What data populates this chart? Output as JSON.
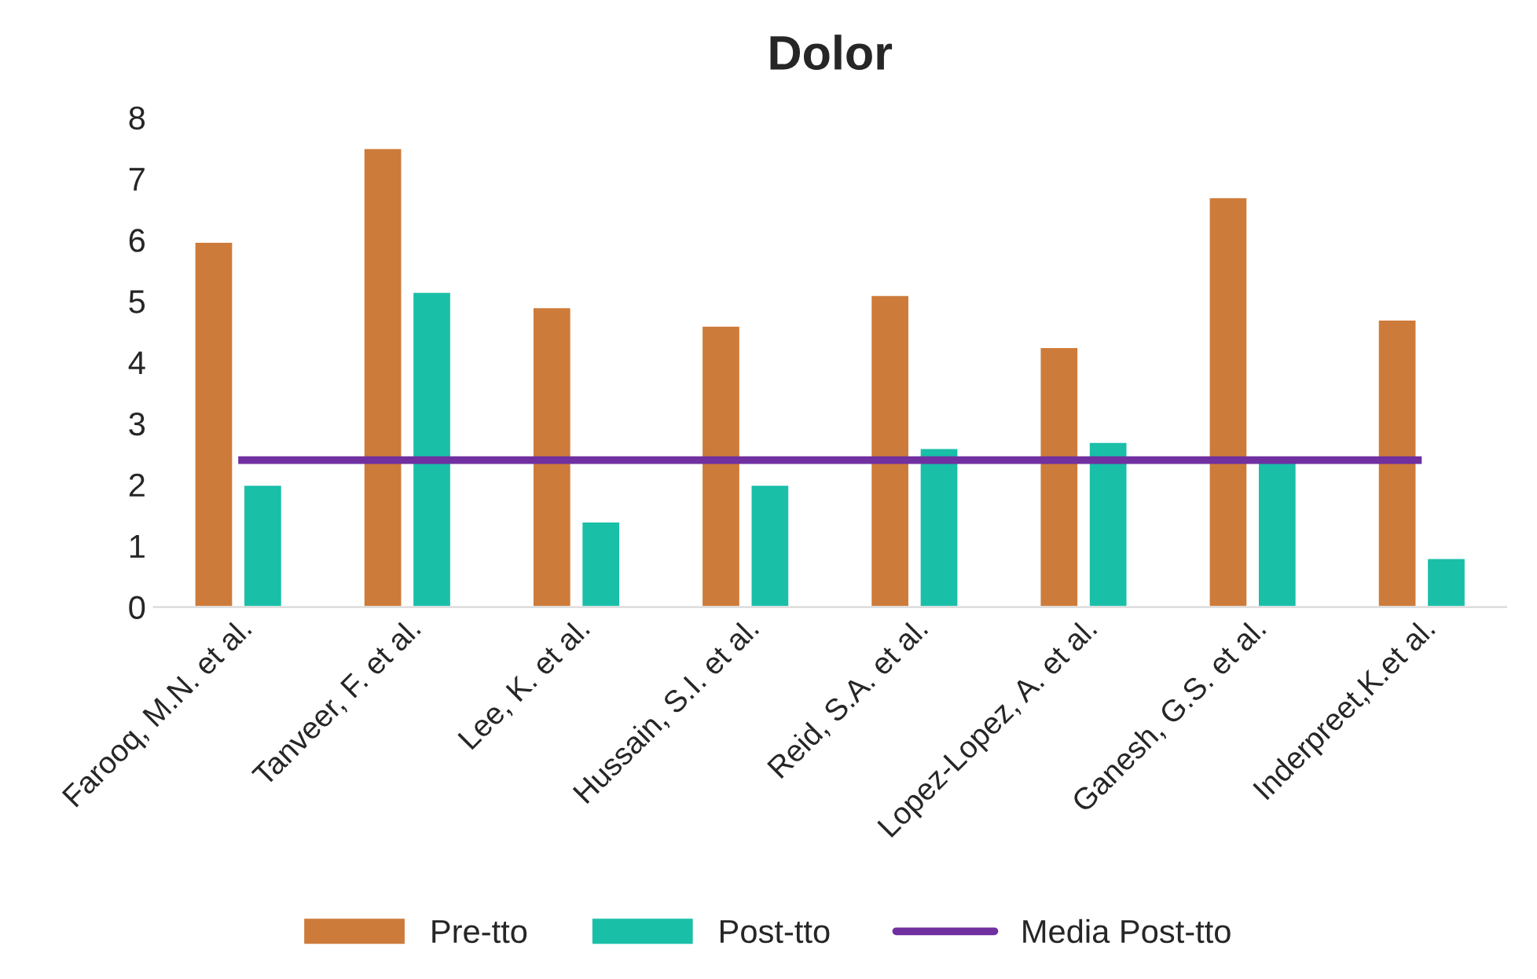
{
  "chart_data": {
    "type": "bar",
    "title": "Dolor",
    "categories": [
      "Farooq, M.N. et al.",
      "Tanveer, F. et al.",
      "Lee, K. et al.",
      "Hussain, S.I. et al.",
      "Reid, S.A. et al.",
      "Lopez-Lopez, A. et al.",
      "Ganesh, G.S. et al.",
      "Inderpreet,K.et al."
    ],
    "series": [
      {
        "name": "Pre-tto",
        "color": "#cd7b3a",
        "values": [
          5.97,
          7.5,
          4.9,
          4.6,
          5.1,
          4.25,
          6.7,
          4.7
        ]
      },
      {
        "name": "Post-tto",
        "color": "#1abfa8",
        "values": [
          2.0,
          5.15,
          1.4,
          2.0,
          2.6,
          2.7,
          2.4,
          0.8
        ]
      },
      {
        "name": "Media Post-tto",
        "color": "#7030a0",
        "type": "line",
        "values": [
          2.4,
          2.4,
          2.4,
          2.4,
          2.4,
          2.4,
          2.4,
          2.4
        ]
      }
    ],
    "ylim": [
      0,
      8
    ],
    "yticks": [
      0,
      1,
      2,
      3,
      4,
      5,
      6,
      7,
      8
    ],
    "grid": false,
    "legend": "bottom"
  }
}
